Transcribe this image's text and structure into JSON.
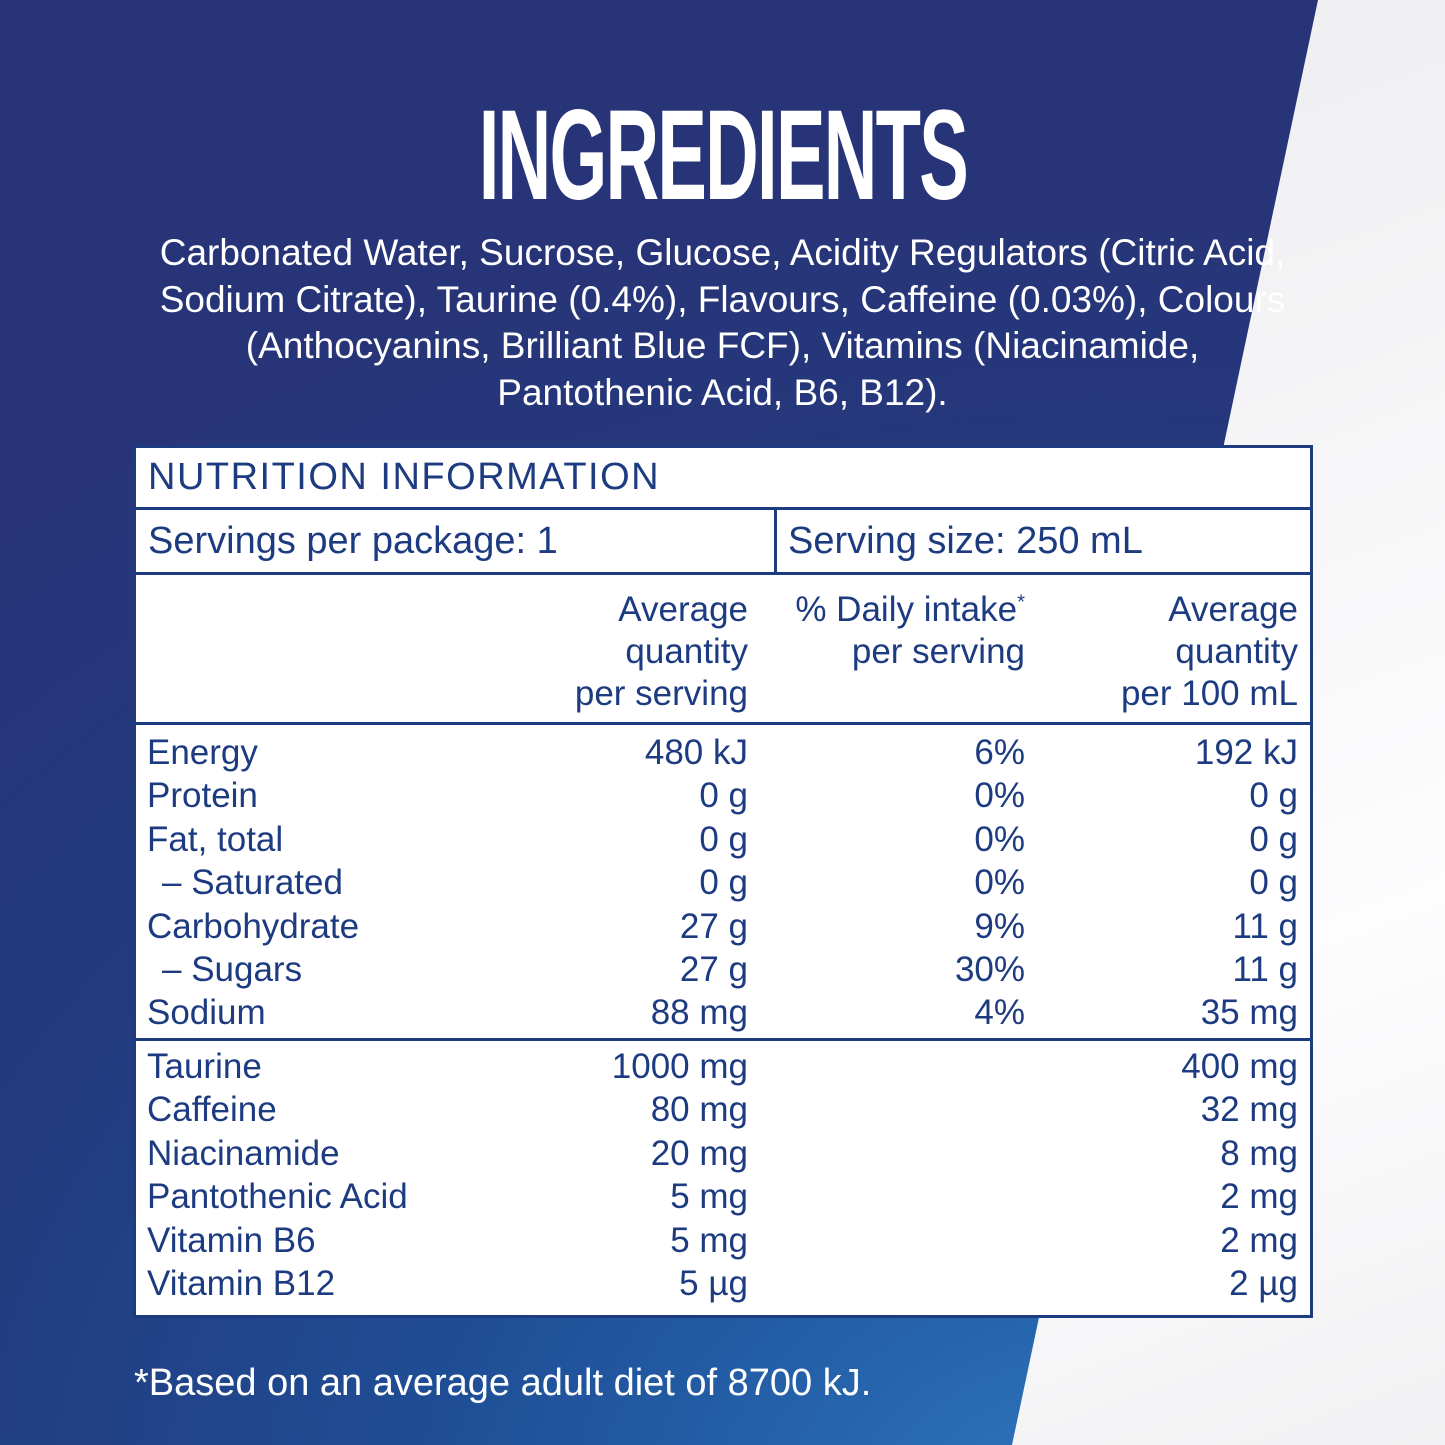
{
  "title": "INGREDIENTS",
  "ingredients": {
    "lines": [
      "Carbonated Water, Sucrose, Glucose, Acidity Regulators (Citric Acid,",
      "Sodium Citrate), Taurine (0.4%), Flavours, Caffeine (0.03%), Colours",
      "(Anthocyanins, Brilliant Blue FCF), Vitamins (Niacinamide,",
      "Pantothenic Acid, B6, B12)."
    ]
  },
  "nutrition_table": {
    "title": "NUTRITION INFORMATION",
    "servings_per_package": "Servings per package: 1",
    "serving_size": "Serving size: 250 mL",
    "columns": {
      "avg_serving": [
        "Average",
        "quantity",
        "per serving"
      ],
      "daily_intake": {
        "main": "% Daily intake",
        "sup": "*",
        "sub": "per serving"
      },
      "avg_100ml": [
        "Average",
        "quantity",
        "per 100 mL"
      ]
    },
    "rows_main": [
      {
        "name": "Energy",
        "indent": false,
        "per_serving": "480 kJ",
        "daily_intake": "6%",
        "per_100ml": "192 kJ"
      },
      {
        "name": "Protein",
        "indent": false,
        "per_serving": "0 g",
        "daily_intake": "0%",
        "per_100ml": "0 g"
      },
      {
        "name": "Fat, total",
        "indent": false,
        "per_serving": "0 g",
        "daily_intake": "0%",
        "per_100ml": "0 g"
      },
      {
        "name": "– Saturated",
        "indent": true,
        "per_serving": "0 g",
        "daily_intake": "0%",
        "per_100ml": "0 g"
      },
      {
        "name": "Carbohydrate",
        "indent": false,
        "per_serving": "27 g",
        "daily_intake": "9%",
        "per_100ml": "11 g"
      },
      {
        "name": "– Sugars",
        "indent": true,
        "per_serving": "27 g",
        "daily_intake": "30%",
        "per_100ml": "11 g"
      },
      {
        "name": "Sodium",
        "indent": false,
        "per_serving": "88 mg",
        "daily_intake": "4%",
        "per_100ml": "35 mg"
      }
    ],
    "rows_supplements": [
      {
        "name": "Taurine",
        "indent": false,
        "per_serving": "1000 mg",
        "daily_intake": "",
        "per_100ml": "400 mg"
      },
      {
        "name": "Caffeine",
        "indent": false,
        "per_serving": "80 mg",
        "daily_intake": "",
        "per_100ml": "32 mg"
      },
      {
        "name": "Niacinamide",
        "indent": false,
        "per_serving": "20 mg",
        "daily_intake": "",
        "per_100ml": "8 mg"
      },
      {
        "name": "Pantothenic Acid",
        "indent": false,
        "per_serving": "5 mg",
        "daily_intake": "",
        "per_100ml": "2 mg"
      },
      {
        "name": "Vitamin B6",
        "indent": false,
        "per_serving": "5 mg",
        "daily_intake": "",
        "per_100ml": "2 mg"
      },
      {
        "name": "Vitamin B12",
        "indent": false,
        "per_serving": "5 µg",
        "daily_intake": "",
        "per_100ml": "2 µg"
      }
    ]
  },
  "footnote": "*Based on an average adult diet of 8700 kJ.",
  "colors": {
    "ink_navy": "#1d3b80",
    "background_navy_dark": "#283478",
    "background_navy_bright": "#2f79c0",
    "panel_white": "#f2f2f4",
    "text_white": "#ffffff"
  }
}
